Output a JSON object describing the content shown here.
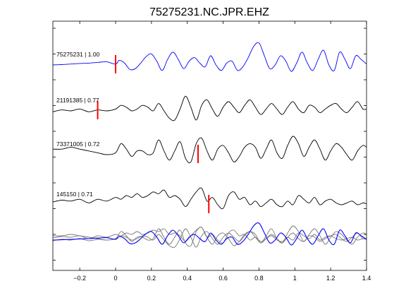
{
  "chart_data": {
    "type": "line",
    "title": "75275231.NC.JPR.EHZ",
    "xlabel": "",
    "ylabel": "",
    "xlim": [
      -0.35,
      1.4
    ],
    "x_ticks": [
      -0.2,
      0,
      0.2,
      0.4,
      0.6,
      0.8,
      1.0,
      1.2,
      1.4
    ],
    "x_tick_labels": [
      "−0.2",
      "0",
      "0.2",
      "0.4",
      "0.6",
      "0.8",
      "1",
      "1.2",
      "1.4"
    ],
    "grid": false,
    "colors": {
      "reference": "#0000ff",
      "other": "#000000",
      "overlay_other": "#777777",
      "pick": "#ff0000"
    },
    "traces": [
      {
        "label": "75275231 | 1.00",
        "event_id": "75275231",
        "correlation": 1.0,
        "pick_time": 0.0,
        "is_reference": true,
        "x": [
          -0.35,
          -0.3,
          -0.25,
          -0.2,
          -0.15,
          -0.1,
          -0.05,
          0.0,
          0.02,
          0.05,
          0.08,
          0.11,
          0.14,
          0.17,
          0.2,
          0.23,
          0.26,
          0.29,
          0.32,
          0.35,
          0.38,
          0.41,
          0.44,
          0.47,
          0.5,
          0.53,
          0.56,
          0.59,
          0.62,
          0.65,
          0.68,
          0.71,
          0.74,
          0.77,
          0.8,
          0.83,
          0.86,
          0.89,
          0.92,
          0.95,
          0.98,
          1.01,
          1.04,
          1.07,
          1.1,
          1.13,
          1.16,
          1.19,
          1.22,
          1.25,
          1.28,
          1.31,
          1.34,
          1.37,
          1.4
        ],
        "y": [
          0.0,
          0.02,
          0.05,
          0.08,
          0.1,
          0.14,
          0.17,
          0.05,
          0.25,
          0.1,
          -0.25,
          -0.2,
          0.1,
          0.45,
          0.6,
          0.2,
          -0.3,
          0.3,
          0.7,
          0.3,
          -0.2,
          0.2,
          0.4,
          0.1,
          -0.1,
          0.5,
          0.0,
          -0.3,
          0.1,
          0.2,
          -0.3,
          -0.1,
          0.4,
          1.0,
          1.2,
          0.5,
          -0.2,
          0.0,
          0.5,
          0.2,
          -0.35,
          0.1,
          0.7,
          0.1,
          -0.3,
          0.3,
          0.8,
          0.0,
          -0.3,
          0.7,
          0.3,
          -0.2,
          0.5,
          0.3,
          0.05
        ]
      },
      {
        "label": "21191385 | 0.77",
        "event_id": "21191385",
        "correlation": 0.77,
        "pick_time": -0.1,
        "is_reference": false,
        "x": [
          -0.35,
          -0.3,
          -0.25,
          -0.2,
          -0.15,
          -0.1,
          -0.05,
          0.0,
          0.03,
          0.06,
          0.09,
          0.12,
          0.15,
          0.18,
          0.21,
          0.24,
          0.27,
          0.3,
          0.33,
          0.36,
          0.39,
          0.42,
          0.45,
          0.48,
          0.51,
          0.54,
          0.57,
          0.6,
          0.63,
          0.66,
          0.69,
          0.72,
          0.75,
          0.78,
          0.81,
          0.84,
          0.87,
          0.9,
          0.93,
          0.96,
          0.99,
          1.02,
          1.05,
          1.08,
          1.11,
          1.14,
          1.17,
          1.2,
          1.23,
          1.26,
          1.29,
          1.32,
          1.35,
          1.38,
          1.4
        ],
        "y": [
          -0.05,
          0.05,
          0.0,
          0.1,
          -0.05,
          0.05,
          0.0,
          0.1,
          0.3,
          0.2,
          0.0,
          0.1,
          0.3,
          0.2,
          0.0,
          0.4,
          0.0,
          -0.4,
          -0.5,
          0.1,
          0.8,
          0.2,
          -0.5,
          0.3,
          0.6,
          0.1,
          -0.3,
          0.2,
          0.5,
          0.2,
          -0.1,
          0.3,
          0.6,
          0.2,
          -0.2,
          0.1,
          0.4,
          0.1,
          -0.2,
          0.2,
          0.5,
          0.1,
          -0.1,
          0.3,
          0.2,
          -0.1,
          0.1,
          0.3,
          0.4,
          0.1,
          -0.1,
          0.2,
          0.5,
          0.1,
          0.1
        ]
      },
      {
        "label": "73371005 | 0.72",
        "event_id": "73371005",
        "correlation": 0.72,
        "pick_time": 0.46,
        "is_reference": false,
        "x": [
          -0.35,
          -0.3,
          -0.25,
          -0.2,
          -0.15,
          -0.1,
          -0.05,
          0.0,
          0.03,
          0.06,
          0.09,
          0.12,
          0.15,
          0.18,
          0.21,
          0.24,
          0.27,
          0.3,
          0.33,
          0.36,
          0.39,
          0.42,
          0.45,
          0.48,
          0.51,
          0.54,
          0.57,
          0.6,
          0.63,
          0.66,
          0.69,
          0.72,
          0.75,
          0.78,
          0.81,
          0.84,
          0.87,
          0.9,
          0.93,
          0.96,
          0.99,
          1.02,
          1.05,
          1.08,
          1.11,
          1.14,
          1.17,
          1.2,
          1.23,
          1.26,
          1.29,
          1.32,
          1.35,
          1.38,
          1.4
        ],
        "y": [
          0.3,
          0.3,
          0.4,
          0.3,
          0.2,
          0.1,
          0.0,
          0.1,
          0.6,
          0.3,
          -0.1,
          0.2,
          0.2,
          0.0,
          0.1,
          0.8,
          0.2,
          -0.3,
          0.2,
          0.7,
          -0.2,
          -0.4,
          0.6,
          0.9,
          0.2,
          -0.3,
          0.3,
          0.5,
          0.1,
          -0.4,
          -0.1,
          0.4,
          0.6,
          0.4,
          -0.2,
          0.3,
          0.8,
          0.1,
          -0.2,
          0.5,
          1.0,
          0.6,
          -0.1,
          0.4,
          0.8,
          0.3,
          -0.3,
          0.2,
          0.6,
          0.4,
          0.0,
          -0.3,
          0.2,
          0.5,
          0.4
        ]
      },
      {
        "label": "145150 | 0.71",
        "event_id": "145150",
        "correlation": 0.71,
        "pick_time": 0.52,
        "is_reference": false,
        "x": [
          -0.35,
          -0.3,
          -0.25,
          -0.2,
          -0.15,
          -0.1,
          -0.05,
          0.0,
          0.03,
          0.06,
          0.09,
          0.12,
          0.15,
          0.18,
          0.21,
          0.24,
          0.27,
          0.3,
          0.33,
          0.36,
          0.39,
          0.42,
          0.45,
          0.48,
          0.51,
          0.54,
          0.57,
          0.6,
          0.63,
          0.66,
          0.69,
          0.72,
          0.75,
          0.78,
          0.81,
          0.84,
          0.87,
          0.9,
          0.93,
          0.96,
          0.99,
          1.02,
          1.05,
          1.08,
          1.11,
          1.14,
          1.17,
          1.2,
          1.23,
          1.26,
          1.29,
          1.32,
          1.35,
          1.38,
          1.4
        ],
        "y": [
          0.15,
          0.25,
          0.2,
          0.3,
          0.1,
          0.3,
          0.2,
          0.4,
          0.3,
          0.5,
          0.4,
          0.6,
          0.4,
          0.5,
          0.7,
          0.6,
          0.8,
          0.4,
          0.5,
          0.3,
          -0.1,
          0.3,
          0.7,
          0.9,
          0.2,
          0.4,
          0.0,
          -0.2,
          0.5,
          0.7,
          0.3,
          0.4,
          0.0,
          0.2,
          -0.1,
          0.1,
          0.3,
          0.0,
          -0.1,
          0.2,
          0.0,
          0.5,
          0.3,
          0.1,
          0.4,
          0.0,
          0.2,
          0.3,
          0.1,
          0.0,
          0.1,
          0.2,
          0.0,
          0.1,
          0.05
        ]
      }
    ]
  }
}
